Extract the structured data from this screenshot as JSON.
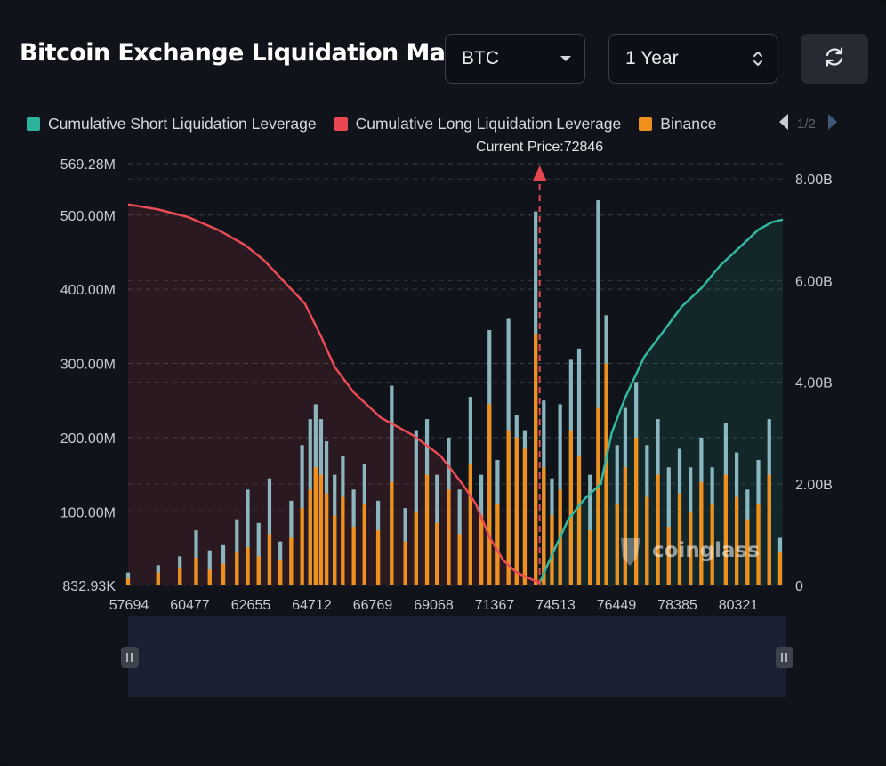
{
  "header": {
    "title": "Bitcoin Exchange Liquidation Map",
    "coin_select": {
      "value": "BTC"
    },
    "period_select": {
      "value": "1 Year"
    }
  },
  "legend": {
    "items": [
      {
        "label": "Cumulative Short Liquidation Leverage",
        "color": "#2bb39b"
      },
      {
        "label": "Cumulative Long Liquidation Leverage",
        "color": "#e84650"
      },
      {
        "label": "Binance",
        "color": "#f0901c"
      }
    ],
    "page": "1/2"
  },
  "watermark": "coinglass",
  "chart_data": {
    "type": "bar",
    "current_price_label": "Current Price:72846",
    "current_price": 72846,
    "x_range": [
      57694,
      81800
    ],
    "x_tick_labels": [
      "57694",
      "60477",
      "62655",
      "64712",
      "66769",
      "69068",
      "71367",
      "74513",
      "76449",
      "78385",
      "80321"
    ],
    "left_axis": {
      "ticks": [
        "832.93K",
        "100.00M",
        "200.00M",
        "300.00M",
        "400.00M",
        "500.00M",
        "569.28M"
      ],
      "range_millions": [
        0.83293,
        569.28
      ]
    },
    "right_axis": {
      "ticks": [
        "0",
        "2.00B",
        "4.00B",
        "6.00B",
        "8.00B"
      ],
      "range_billions": [
        0,
        8.3
      ]
    },
    "series": [
      {
        "name": "Cumulative Long Liquidation Leverage",
        "axis": "right",
        "unit": "B",
        "points": [
          [
            57694,
            7.5
          ],
          [
            58800,
            7.4
          ],
          [
            59900,
            7.25
          ],
          [
            61000,
            7.0
          ],
          [
            62000,
            6.7
          ],
          [
            62700,
            6.4
          ],
          [
            63400,
            6.0
          ],
          [
            64200,
            5.55
          ],
          [
            64800,
            4.9
          ],
          [
            65300,
            4.3
          ],
          [
            66000,
            3.8
          ],
          [
            67000,
            3.3
          ],
          [
            68200,
            2.95
          ],
          [
            69200,
            2.55
          ],
          [
            70000,
            2.0
          ],
          [
            70500,
            1.6
          ],
          [
            71000,
            0.95
          ],
          [
            71500,
            0.5
          ],
          [
            72000,
            0.25
          ],
          [
            72846,
            0.05
          ]
        ]
      },
      {
        "name": "Cumulative Short Liquidation Leverage",
        "axis": "right",
        "unit": "B",
        "points": [
          [
            72846,
            0.05
          ],
          [
            73300,
            0.6
          ],
          [
            73900,
            1.3
          ],
          [
            74500,
            1.7
          ],
          [
            75100,
            2.0
          ],
          [
            75500,
            3.0
          ],
          [
            76000,
            3.7
          ],
          [
            76700,
            4.5
          ],
          [
            77400,
            5.0
          ],
          [
            78100,
            5.5
          ],
          [
            78800,
            5.85
          ],
          [
            79500,
            6.3
          ],
          [
            80300,
            6.7
          ],
          [
            80900,
            7.0
          ],
          [
            81400,
            7.15
          ],
          [
            81800,
            7.2
          ]
        ]
      },
      {
        "name": "Binance",
        "axis": "left",
        "unit": "M",
        "x": [
          57694,
          58800,
          59600,
          60200,
          60700,
          61200,
          61700,
          62100,
          62500,
          62900,
          63300,
          63700,
          64100,
          64400,
          64600,
          64800,
          65000,
          65300,
          65600,
          66000,
          66400,
          66900,
          67400,
          67900,
          68300,
          68700,
          69068,
          69500,
          69900,
          70300,
          70700,
          71000,
          71300,
          71700,
          72000,
          72300,
          72700,
          73000,
          73300,
          73600,
          74000,
          74300,
          74700,
          75000,
          75300,
          75700,
          76000,
          76400,
          76800,
          77200,
          77600,
          78000,
          78400,
          78800,
          79200,
          79700,
          80100,
          80500,
          80900,
          81300,
          81700
        ],
        "values": [
          10,
          18,
          25,
          38,
          22,
          30,
          45,
          52,
          40,
          70,
          35,
          65,
          105,
          130,
          160,
          150,
          125,
          95,
          120,
          80,
          110,
          75,
          140,
          60,
          100,
          150,
          85,
          130,
          70,
          165,
          95,
          245,
          110,
          210,
          200,
          185,
          340,
          160,
          95,
          130,
          210,
          175,
          75,
          240,
          300,
          110,
          160,
          200,
          120,
          150,
          80,
          125,
          100,
          140,
          110,
          150,
          120,
          90,
          110,
          150,
          45
        ]
      },
      {
        "name": "",
        "axis": "left",
        "unit": "M",
        "x": [
          57694,
          58800,
          59600,
          60200,
          60700,
          61200,
          61700,
          62100,
          62500,
          62900,
          63300,
          63700,
          64100,
          64400,
          64600,
          64800,
          65000,
          65300,
          65600,
          66000,
          66400,
          66900,
          67400,
          67900,
          68300,
          68700,
          69068,
          69500,
          69900,
          70300,
          70700,
          71000,
          71300,
          71700,
          72000,
          72300,
          72700,
          73000,
          73300,
          73600,
          74000,
          74300,
          74700,
          75000,
          75300,
          75700,
          76000,
          76400,
          76800,
          77200,
          77600,
          78000,
          78400,
          78800,
          79200,
          79700,
          80100,
          80500,
          80900,
          81300,
          81700
        ],
        "values": [
          18,
          28,
          40,
          75,
          48,
          55,
          90,
          130,
          85,
          145,
          60,
          115,
          190,
          225,
          245,
          225,
          195,
          150,
          175,
          130,
          165,
          115,
          270,
          105,
          210,
          225,
          150,
          200,
          130,
          255,
          150,
          345,
          170,
          360,
          230,
          210,
          505,
          250,
          145,
          245,
          305,
          320,
          150,
          520,
          365,
          190,
          240,
          275,
          190,
          225,
          160,
          185,
          160,
          200,
          160,
          220,
          180,
          130,
          170,
          225,
          65
        ]
      }
    ]
  }
}
